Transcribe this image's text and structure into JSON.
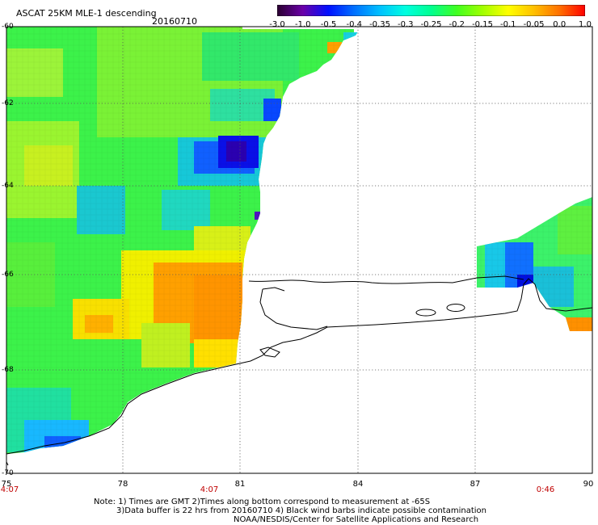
{
  "header": {
    "title": "ASCAT 25KM MLE-1 descending",
    "date": "20160710"
  },
  "colorbar": {
    "labels": [
      "-3.0",
      "-1.0",
      "-0.5",
      "-0.4",
      "-0.35",
      "-0.3",
      "-0.25",
      "-0.2",
      "-0.15",
      "-0.1",
      "-0.05",
      "0.0",
      "1.0"
    ],
    "colors": [
      "#2a0030",
      "#6a00a8",
      "#0010ff",
      "#0070ff",
      "#00c0ff",
      "#00ffe0",
      "#00ff90",
      "#40ff20",
      "#a0ff00",
      "#ffff00",
      "#ffc000",
      "#ff7000",
      "#ff0000"
    ]
  },
  "map": {
    "lon_labels": [
      "75",
      "78",
      "81",
      "84",
      "87",
      "90"
    ],
    "lat_labels": [
      "-60",
      "-62",
      "-64",
      "-66",
      "-68",
      "-70"
    ],
    "time_labels": [
      "4:07",
      "4:07",
      "0:46"
    ],
    "colors": {
      "grid": "#444444",
      "coast": "#000000",
      "time_text": "#c00000"
    }
  },
  "notes": {
    "line1": "Note: 1) Times are GMT 2)Times along bottom correspond to measurement at -65S",
    "line2": "3)Data buffer is 22 hrs from 20160710 4) Black wind barbs indicate possible contamination",
    "line3": "NOAA/NESDIS/Center for Satellite Applications and Research"
  }
}
